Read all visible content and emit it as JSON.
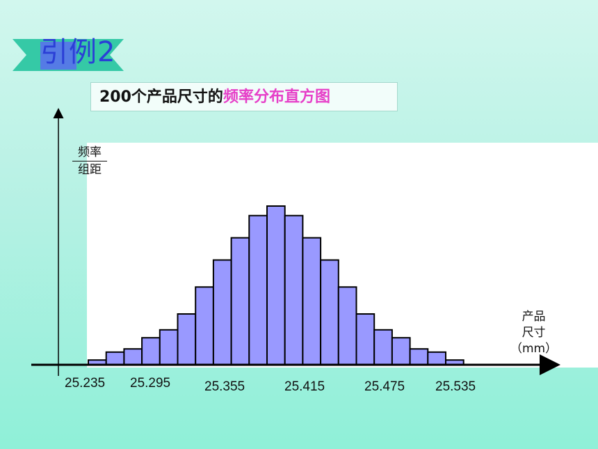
{
  "slide": {
    "banner_text": "引例2",
    "title_prefix": "200个产品尺寸的",
    "title_highlight": "频率分布直方图",
    "colors": {
      "banner_green": "#35c9a6",
      "banner_blue": "#5a6df0",
      "title_pink": "#e63fc8",
      "bar_fill": "#9999ff",
      "bar_stroke": "#000000"
    }
  },
  "chart_data": {
    "type": "bar",
    "title": "200个产品尺寸的频率分布直方图",
    "ylabel_top": "频率",
    "ylabel_bottom": "组距",
    "xlabel_line1": "产品",
    "xlabel_line2": "尺寸",
    "xlabel_unit": "（mm）",
    "x_tick_labels": [
      "25.235",
      "25.295",
      "25.355",
      "25.415",
      "25.475",
      "25.535"
    ],
    "bin_start": 25.235,
    "bin_width": 0.015,
    "relative_heights": [
      0.03,
      0.08,
      0.1,
      0.17,
      0.22,
      0.32,
      0.49,
      0.66,
      0.8,
      0.94,
      1.0,
      0.94,
      0.8,
      0.66,
      0.49,
      0.32,
      0.22,
      0.17,
      0.1,
      0.08,
      0.03
    ],
    "grid": false,
    "legend": "none"
  }
}
